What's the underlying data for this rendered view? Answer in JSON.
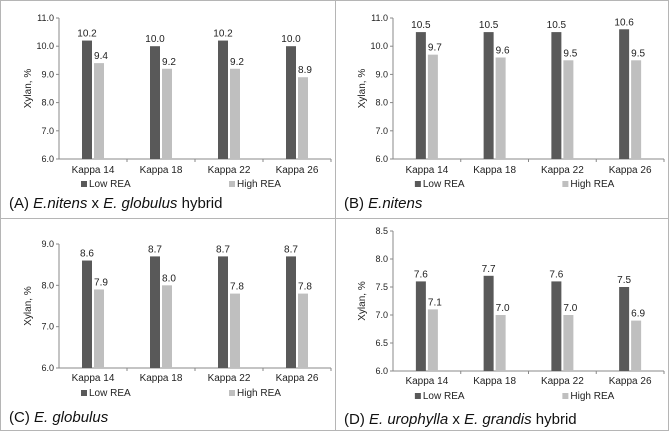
{
  "colors": {
    "low": "#595959",
    "high": "#bfbfbf",
    "axis": "#888888"
  },
  "chart_data": [
    {
      "type": "bar",
      "panel_id": "A",
      "caption": [
        "(A) ",
        {
          "i": "E.nitens"
        },
        " x ",
        {
          "i": "E. globulus"
        },
        " hybrid"
      ],
      "ylabel": "Xylan, %",
      "ylim": [
        6.0,
        11.0
      ],
      "yticks": [
        "6.0",
        "7.0",
        "8.0",
        "9.0",
        "10.0",
        "11.0"
      ],
      "categories": [
        "Kappa 14",
        "Kappa 18",
        "Kappa 22",
        "Kappa 26"
      ],
      "series": [
        {
          "name": "Low REA",
          "values": [
            10.2,
            10.0,
            10.2,
            10.0
          ],
          "labels": [
            "10.2",
            "10.0",
            "10.2",
            "10.0"
          ]
        },
        {
          "name": "High REA",
          "values": [
            9.4,
            9.2,
            9.2,
            8.9
          ],
          "labels": [
            "9.4",
            "9.2",
            "9.2",
            "8.9"
          ]
        }
      ],
      "legend": "bottom"
    },
    {
      "type": "bar",
      "panel_id": "B",
      "caption": [
        "(B) ",
        {
          "i": "E.nitens"
        }
      ],
      "ylabel": "Xylan, %",
      "ylim": [
        6.0,
        11.0
      ],
      "yticks": [
        "6.0",
        "7.0",
        "8.0",
        "9.0",
        "10.0",
        "11.0"
      ],
      "categories": [
        "Kappa 14",
        "Kappa 18",
        "Kappa 22",
        "Kappa 26"
      ],
      "series": [
        {
          "name": "Low REA",
          "values": [
            10.5,
            10.5,
            10.5,
            10.6
          ],
          "labels": [
            "10.5",
            "10.5",
            "10.5",
            "10.6"
          ]
        },
        {
          "name": "High REA",
          "values": [
            9.7,
            9.6,
            9.5,
            9.5
          ],
          "labels": [
            "9.7",
            "9.6",
            "9.5",
            "9.5"
          ]
        }
      ],
      "legend": "bottom"
    },
    {
      "type": "bar",
      "panel_id": "C",
      "caption": [
        "(C)  ",
        {
          "i": "E. globulus"
        }
      ],
      "ylabel": "Xylan, %",
      "ylim": [
        6.0,
        9.0
      ],
      "yticks": [
        "6.0",
        "7.0",
        "8.0",
        "9.0"
      ],
      "categories": [
        "Kappa 14",
        "Kappa 18",
        "Kappa 22",
        "Kappa 26"
      ],
      "series": [
        {
          "name": "Low REA",
          "values": [
            8.6,
            8.7,
            8.7,
            8.7
          ],
          "labels": [
            "8.6",
            "8.7",
            "8.7",
            "8.7"
          ]
        },
        {
          "name": "High REA",
          "values": [
            7.9,
            8.0,
            7.8,
            7.8
          ],
          "labels": [
            "7.9",
            "8.0",
            "7.8",
            "7.8"
          ]
        }
      ],
      "legend": "bottom"
    },
    {
      "type": "bar",
      "panel_id": "D",
      "caption": [
        "(D) ",
        {
          "i": "E. urophylla"
        },
        " x ",
        {
          "i": "E. grandis"
        },
        " hybrid"
      ],
      "ylabel": "Xylan, %",
      "ylim": [
        6.0,
        8.5
      ],
      "yticks": [
        "6.0",
        "6.5",
        "7.0",
        "7.5",
        "8.0",
        "8.5"
      ],
      "categories": [
        "Kappa 14",
        "Kappa 18",
        "Kappa 22",
        "Kappa 26"
      ],
      "series": [
        {
          "name": "Low REA",
          "values": [
            7.6,
            7.7,
            7.6,
            7.5
          ],
          "labels": [
            "7.6",
            "7.7",
            "7.6",
            "7.5"
          ]
        },
        {
          "name": "High REA",
          "values": [
            7.1,
            7.0,
            7.0,
            6.9
          ],
          "labels": [
            "7.1",
            "7.0",
            "7.0",
            "6.9"
          ]
        }
      ],
      "legend": "bottom"
    }
  ]
}
